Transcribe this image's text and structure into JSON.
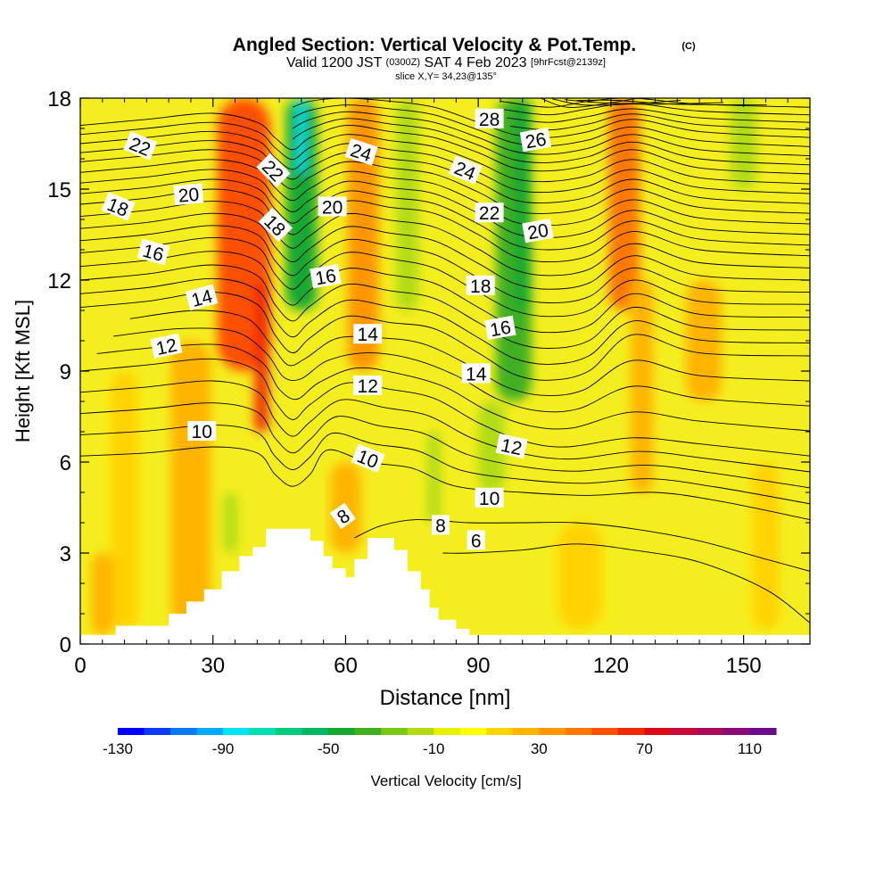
{
  "chart_data": {
    "type": "heatmap",
    "title": "Angled Section: Vertical Velocity & Pot.Temp.",
    "title_mark": "(C)",
    "subtitle": {
      "valid": "Valid 1200 JST",
      "utc": "(0300Z)",
      "date": "SAT 4 Feb 2023",
      "forecast": "[9hrFcst@2139z]"
    },
    "slice_note": "slice X,Y= 34,23@135°",
    "xlabel": "Distance [nm]",
    "ylabel": "Height [Kft MSL]",
    "xlim": [
      0,
      165
    ],
    "ylim": [
      0,
      18
    ],
    "x_ticks": [
      0,
      30,
      60,
      90,
      120,
      150
    ],
    "y_ticks": [
      0,
      3,
      6,
      9,
      12,
      15,
      18
    ],
    "colorbar": {
      "label": "Vertical Velocity [cm/s]",
      "tick_labels": [
        "-130",
        "-90",
        "-50",
        "-10",
        "30",
        "70",
        "110"
      ],
      "levels": [
        -130,
        -120,
        -110,
        -100,
        -90,
        -80,
        -70,
        -60,
        -50,
        -40,
        -30,
        -20,
        -10,
        0,
        10,
        20,
        30,
        40,
        50,
        60,
        70,
        80,
        90,
        100,
        110,
        120
      ],
      "colors": [
        "#0000ff",
        "#0a3cf5",
        "#0a78f0",
        "#00aaf5",
        "#00e6f0",
        "#00e0b0",
        "#00cc80",
        "#00b860",
        "#18a830",
        "#40b020",
        "#78c814",
        "#b0dc14",
        "#e6f000",
        "#ffff00",
        "#ffd200",
        "#ffb400",
        "#ff9600",
        "#ff7800",
        "#ff5000",
        "#f02800",
        "#dc0a14",
        "#c80a3c",
        "#aa0a5a",
        "#8c0a78",
        "#6e0a8c"
      ]
    },
    "vertical_velocity_features": [
      {
        "x": 37,
        "width": 12,
        "y0": 9,
        "y1": 18,
        "value": 55
      },
      {
        "x": 41,
        "width": 3,
        "y0": 7,
        "y1": 12,
        "value": 65
      },
      {
        "x": 50,
        "width": 7,
        "y0": 11,
        "y1": 18,
        "value": -45
      },
      {
        "x": 50,
        "width": 2,
        "y0": 15.5,
        "y1": 18,
        "value": -90
      },
      {
        "x": 64,
        "width": 7,
        "y0": 9,
        "y1": 18,
        "value": 35
      },
      {
        "x": 98,
        "width": 8,
        "y0": 8,
        "y1": 18,
        "value": -35
      },
      {
        "x": 100,
        "width": 4,
        "y0": 11,
        "y1": 18,
        "value": -50
      },
      {
        "x": 74,
        "width": 5,
        "y0": 11,
        "y1": 18,
        "value": -15
      },
      {
        "x": 123,
        "width": 7,
        "y0": 11,
        "y1": 18,
        "value": 40
      },
      {
        "x": 127,
        "width": 5,
        "y0": 5,
        "y1": 12,
        "value": 20
      },
      {
        "x": 150,
        "width": 6,
        "y0": 15,
        "y1": 18,
        "value": -15
      },
      {
        "x": 25,
        "width": 9,
        "y0": 0.5,
        "y1": 10,
        "value": 25
      },
      {
        "x": 10,
        "width": 6,
        "y0": 0.5,
        "y1": 9,
        "value": 15
      },
      {
        "x": 60,
        "width": 7,
        "y0": 3,
        "y1": 6,
        "value": 25
      },
      {
        "x": 113,
        "width": 10,
        "y0": 0.5,
        "y1": 4,
        "value": 15
      },
      {
        "x": 155,
        "width": 6,
        "y0": 0.5,
        "y1": 6,
        "value": 15
      },
      {
        "x": 34,
        "width": 3,
        "y0": 3,
        "y1": 5,
        "value": -15
      },
      {
        "x": 80,
        "width": 3,
        "y0": 4,
        "y1": 7,
        "value": -15
      },
      {
        "x": 93,
        "width": 6,
        "y0": 5,
        "y1": 8,
        "value": -15
      },
      {
        "x": 141,
        "width": 8,
        "y0": 8,
        "y1": 12,
        "value": 20
      },
      {
        "x": 5,
        "width": 5,
        "y0": 0.3,
        "y1": 3,
        "value": 25
      }
    ],
    "terrain": [
      [
        0,
        0.3
      ],
      [
        8,
        0.3
      ],
      [
        8,
        0.6
      ],
      [
        20,
        0.6
      ],
      [
        20,
        1
      ],
      [
        24,
        1
      ],
      [
        24,
        1.4
      ],
      [
        28,
        1.4
      ],
      [
        28,
        1.8
      ],
      [
        32,
        1.8
      ],
      [
        32,
        2.4
      ],
      [
        36,
        2.4
      ],
      [
        36,
        2.9
      ],
      [
        39,
        2.9
      ],
      [
        39,
        3.2
      ],
      [
        42,
        3.2
      ],
      [
        42,
        3.8
      ],
      [
        52,
        3.8
      ],
      [
        52,
        3.4
      ],
      [
        55,
        3.4
      ],
      [
        55,
        2.9
      ],
      [
        57,
        2.9
      ],
      [
        57,
        2.5
      ],
      [
        60,
        2.5
      ],
      [
        60,
        2.2
      ],
      [
        62,
        2.2
      ],
      [
        62,
        2.8
      ],
      [
        65,
        2.8
      ],
      [
        65,
        3.5
      ],
      [
        71,
        3.5
      ],
      [
        71,
        3.1
      ],
      [
        74,
        3.1
      ],
      [
        74,
        2.4
      ],
      [
        77,
        2.4
      ],
      [
        77,
        1.8
      ],
      [
        79,
        1.8
      ],
      [
        79,
        1.2
      ],
      [
        81,
        1.2
      ],
      [
        81,
        0.8
      ],
      [
        85,
        0.8
      ],
      [
        85,
        0.5
      ],
      [
        88,
        0.5
      ],
      [
        88,
        0.3
      ],
      [
        165,
        0.3
      ]
    ],
    "theta_contours": [
      {
        "v": 6,
        "pts": [
          [
            82,
            3.0
          ],
          [
            88,
            3.0
          ],
          [
            100,
            3.1
          ],
          [
            112,
            3.3
          ],
          [
            125,
            3.1
          ],
          [
            140,
            2.7
          ],
          [
            155,
            1.8
          ],
          [
            165,
            0.7
          ]
        ]
      },
      {
        "v": 8,
        "pts": [
          [
            62,
            3.5
          ],
          [
            68,
            3.9
          ],
          [
            76,
            4.1
          ],
          [
            88,
            4.0
          ],
          [
            100,
            4.0
          ],
          [
            112,
            4.0
          ],
          [
            125,
            3.8
          ],
          [
            140,
            3.4
          ],
          [
            155,
            2.8
          ],
          [
            165,
            2.4
          ]
        ]
      },
      {
        "v": 10,
        "pts": [
          [
            0,
            6.2
          ],
          [
            15,
            6.3
          ],
          [
            30,
            6.5
          ],
          [
            40,
            6.3
          ],
          [
            44,
            5.6
          ],
          [
            48,
            5.2
          ],
          [
            52,
            5.6
          ],
          [
            56,
            6.4
          ],
          [
            65,
            6.0
          ],
          [
            75,
            5.8
          ],
          [
            85,
            5.2
          ],
          [
            100,
            5.0
          ],
          [
            115,
            4.9
          ],
          [
            130,
            5.0
          ],
          [
            145,
            4.7
          ],
          [
            165,
            4.1
          ]
        ]
      },
      {
        "v": 12,
        "pts": [
          [
            0,
            9.0
          ],
          [
            15,
            9.2
          ],
          [
            30,
            9.4
          ],
          [
            40,
            9.0
          ],
          [
            44,
            8.0
          ],
          [
            48,
            7.4
          ],
          [
            52,
            7.9
          ],
          [
            60,
            8.6
          ],
          [
            70,
            8.4
          ],
          [
            80,
            8.1
          ],
          [
            90,
            7.3
          ],
          [
            100,
            6.7
          ],
          [
            110,
            6.5
          ],
          [
            125,
            6.8
          ],
          [
            140,
            6.6
          ],
          [
            165,
            6.2
          ]
        ]
      },
      {
        "v": 14,
        "pts": [
          [
            0,
            11.1
          ],
          [
            15,
            11.3
          ],
          [
            30,
            11.6
          ],
          [
            40,
            11.2
          ],
          [
            44,
            10.2
          ],
          [
            48,
            9.6
          ],
          [
            52,
            10.1
          ],
          [
            60,
            10.8
          ],
          [
            70,
            10.6
          ],
          [
            80,
            10.4
          ],
          [
            90,
            9.6
          ],
          [
            98,
            8.9
          ],
          [
            106,
            8.7
          ],
          [
            115,
            9.0
          ],
          [
            125,
            10.2
          ],
          [
            140,
            9.6
          ],
          [
            165,
            9.5
          ]
        ]
      },
      {
        "v": 16,
        "pts": [
          [
            0,
            12.9
          ],
          [
            15,
            13.1
          ],
          [
            30,
            13.4
          ],
          [
            40,
            13.1
          ],
          [
            44,
            12.2
          ],
          [
            48,
            11.7
          ],
          [
            52,
            12.2
          ],
          [
            60,
            12.9
          ],
          [
            70,
            12.7
          ],
          [
            80,
            12.4
          ],
          [
            90,
            11.6
          ],
          [
            98,
            11.0
          ],
          [
            106,
            10.8
          ],
          [
            115,
            11.0
          ],
          [
            125,
            12.0
          ],
          [
            140,
            11.3
          ],
          [
            165,
            11.2
          ]
        ]
      },
      {
        "v": 18,
        "pts": [
          [
            0,
            14.5
          ],
          [
            15,
            14.7
          ],
          [
            30,
            15.0
          ],
          [
            40,
            14.7
          ],
          [
            44,
            14.0
          ],
          [
            48,
            13.5
          ],
          [
            52,
            13.9
          ],
          [
            60,
            14.6
          ],
          [
            70,
            14.4
          ],
          [
            80,
            14.2
          ],
          [
            90,
            13.5
          ],
          [
            98,
            12.8
          ],
          [
            106,
            12.6
          ],
          [
            115,
            12.8
          ],
          [
            125,
            13.6
          ],
          [
            140,
            13.0
          ],
          [
            165,
            12.8
          ]
        ]
      },
      {
        "v": 20,
        "pts": [
          [
            0,
            15.9
          ],
          [
            15,
            16.1
          ],
          [
            30,
            16.3
          ],
          [
            40,
            16.0
          ],
          [
            44,
            15.4
          ],
          [
            48,
            15.0
          ],
          [
            52,
            15.4
          ],
          [
            60,
            15.9
          ],
          [
            70,
            15.7
          ],
          [
            80,
            15.5
          ],
          [
            90,
            14.9
          ],
          [
            98,
            14.3
          ],
          [
            106,
            14.2
          ],
          [
            115,
            14.4
          ],
          [
            125,
            15.0
          ],
          [
            140,
            14.4
          ],
          [
            165,
            14.2
          ]
        ]
      },
      {
        "v": 22,
        "pts": [
          [
            0,
            17.1
          ],
          [
            15,
            17.3
          ],
          [
            30,
            17.5
          ],
          [
            40,
            17.2
          ],
          [
            44,
            16.7
          ],
          [
            48,
            16.3
          ],
          [
            52,
            16.7
          ],
          [
            60,
            17.1
          ],
          [
            70,
            16.9
          ],
          [
            80,
            16.7
          ],
          [
            90,
            16.2
          ],
          [
            98,
            15.7
          ],
          [
            106,
            15.6
          ],
          [
            115,
            15.8
          ],
          [
            125,
            16.3
          ],
          [
            140,
            15.7
          ],
          [
            165,
            15.5
          ]
        ]
      },
      {
        "v": 24,
        "pts": [
          [
            48,
            17.7
          ],
          [
            52,
            17.9
          ],
          [
            60,
            18.0
          ],
          [
            70,
            17.9
          ],
          [
            80,
            17.7
          ],
          [
            90,
            17.2
          ],
          [
            98,
            16.8
          ],
          [
            106,
            16.7
          ],
          [
            115,
            16.9
          ],
          [
            125,
            17.3
          ],
          [
            140,
            16.9
          ],
          [
            165,
            16.7
          ]
        ]
      },
      {
        "v": 26,
        "pts": [
          [
            95,
            17.9
          ],
          [
            106,
            17.7
          ],
          [
            115,
            17.9
          ],
          [
            125,
            18.0
          ],
          [
            140,
            17.8
          ],
          [
            165,
            17.7
          ]
        ]
      },
      {
        "v": 28,
        "pts": [
          [
            104,
            18.0
          ],
          [
            110,
            17.7
          ],
          [
            118,
            17.8
          ],
          [
            126,
            18.0
          ]
        ]
      }
    ],
    "contour_labels": [
      {
        "text": "22",
        "x": 13.5,
        "y": 16.4,
        "angle": 22
      },
      {
        "text": "18",
        "x": 8.5,
        "y": 14.4,
        "angle": 22
      },
      {
        "text": "20",
        "x": 24.5,
        "y": 14.8,
        "angle": -5
      },
      {
        "text": "16",
        "x": 16.5,
        "y": 12.9,
        "angle": 15
      },
      {
        "text": "14",
        "x": 27.5,
        "y": 11.4,
        "angle": -15
      },
      {
        "text": "12",
        "x": 19.5,
        "y": 9.8,
        "angle": -12
      },
      {
        "text": "10",
        "x": 27.5,
        "y": 7.0,
        "angle": 0
      },
      {
        "text": "22",
        "x": 43.5,
        "y": 15.6,
        "angle": 45
      },
      {
        "text": "18",
        "x": 44,
        "y": 13.8,
        "angle": 45
      },
      {
        "text": "20",
        "x": 57,
        "y": 14.4,
        "angle": 0
      },
      {
        "text": "24",
        "x": 63.5,
        "y": 16.2,
        "angle": 18
      },
      {
        "text": "16",
        "x": 55.5,
        "y": 12.1,
        "angle": -10
      },
      {
        "text": "14",
        "x": 65,
        "y": 10.2,
        "angle": 0
      },
      {
        "text": "12",
        "x": 65,
        "y": 8.5,
        "angle": 0
      },
      {
        "text": "10",
        "x": 65,
        "y": 6.1,
        "angle": 22
      },
      {
        "text": "8",
        "x": 59.5,
        "y": 4.2,
        "angle": -35
      },
      {
        "text": "24",
        "x": 87,
        "y": 15.6,
        "angle": 22
      },
      {
        "text": "28",
        "x": 92.5,
        "y": 17.3,
        "angle": 0
      },
      {
        "text": "22",
        "x": 92.5,
        "y": 14.2,
        "angle": 0
      },
      {
        "text": "18",
        "x": 90.5,
        "y": 11.8,
        "angle": 0
      },
      {
        "text": "26",
        "x": 103,
        "y": 16.6,
        "angle": -10
      },
      {
        "text": "20",
        "x": 103.5,
        "y": 13.6,
        "angle": -10
      },
      {
        "text": "16",
        "x": 95,
        "y": 10.4,
        "angle": -10
      },
      {
        "text": "14",
        "x": 89.5,
        "y": 8.9,
        "angle": 0
      },
      {
        "text": "12",
        "x": 97.5,
        "y": 6.5,
        "angle": 12
      },
      {
        "text": "10",
        "x": 92.5,
        "y": 4.8,
        "angle": 0
      },
      {
        "text": "8",
        "x": 81.5,
        "y": 3.9,
        "angle": 0
      },
      {
        "text": "6",
        "x": 89.5,
        "y": 3.4,
        "angle": 0
      }
    ]
  }
}
